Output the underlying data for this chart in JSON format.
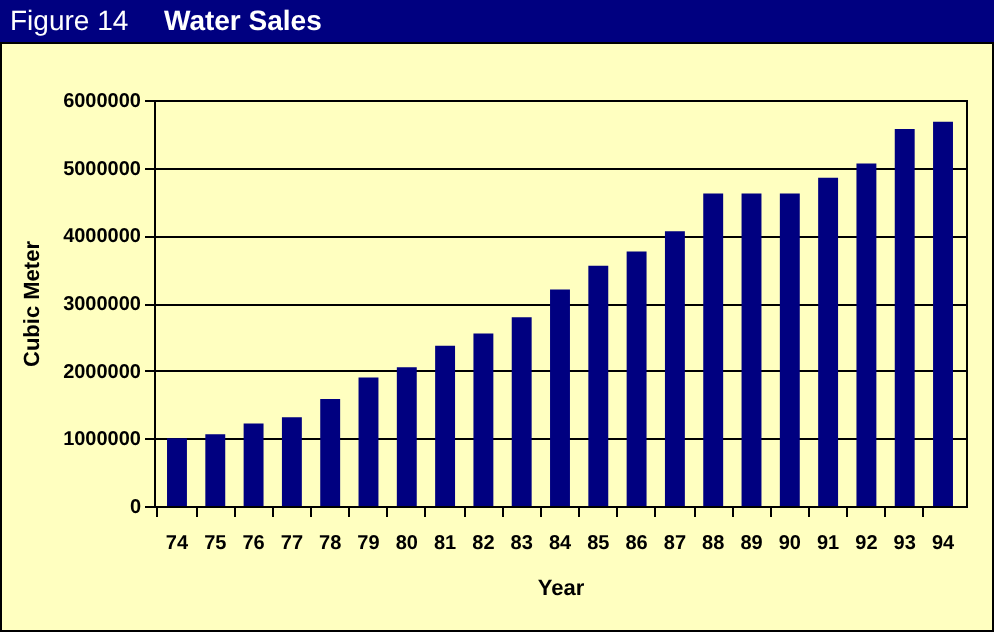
{
  "chart_data": {
    "type": "bar",
    "title": "Water Sales",
    "annotations": [
      "Figure 14"
    ],
    "xlabel": "Year",
    "ylabel": "Cubic Meter",
    "categories": [
      "74",
      "75",
      "76",
      "77",
      "78",
      "79",
      "80",
      "81",
      "82",
      "83",
      "84",
      "85",
      "86",
      "87",
      "88",
      "89",
      "90",
      "91",
      "92",
      "93",
      "94"
    ],
    "values": [
      1000000,
      1060000,
      1220000,
      1310000,
      1580000,
      1900000,
      2050000,
      2370000,
      2550000,
      2790000,
      3200000,
      3550000,
      3760000,
      4060000,
      4620000,
      4620000,
      4620000,
      4850000,
      5060000,
      5570000,
      5680000
    ],
    "color": "#000080",
    "ylim": [
      0,
      6000000
    ],
    "yticks": [
      0,
      1000000,
      2000000,
      3000000,
      4000000,
      5000000,
      6000000
    ],
    "grid": "y"
  }
}
